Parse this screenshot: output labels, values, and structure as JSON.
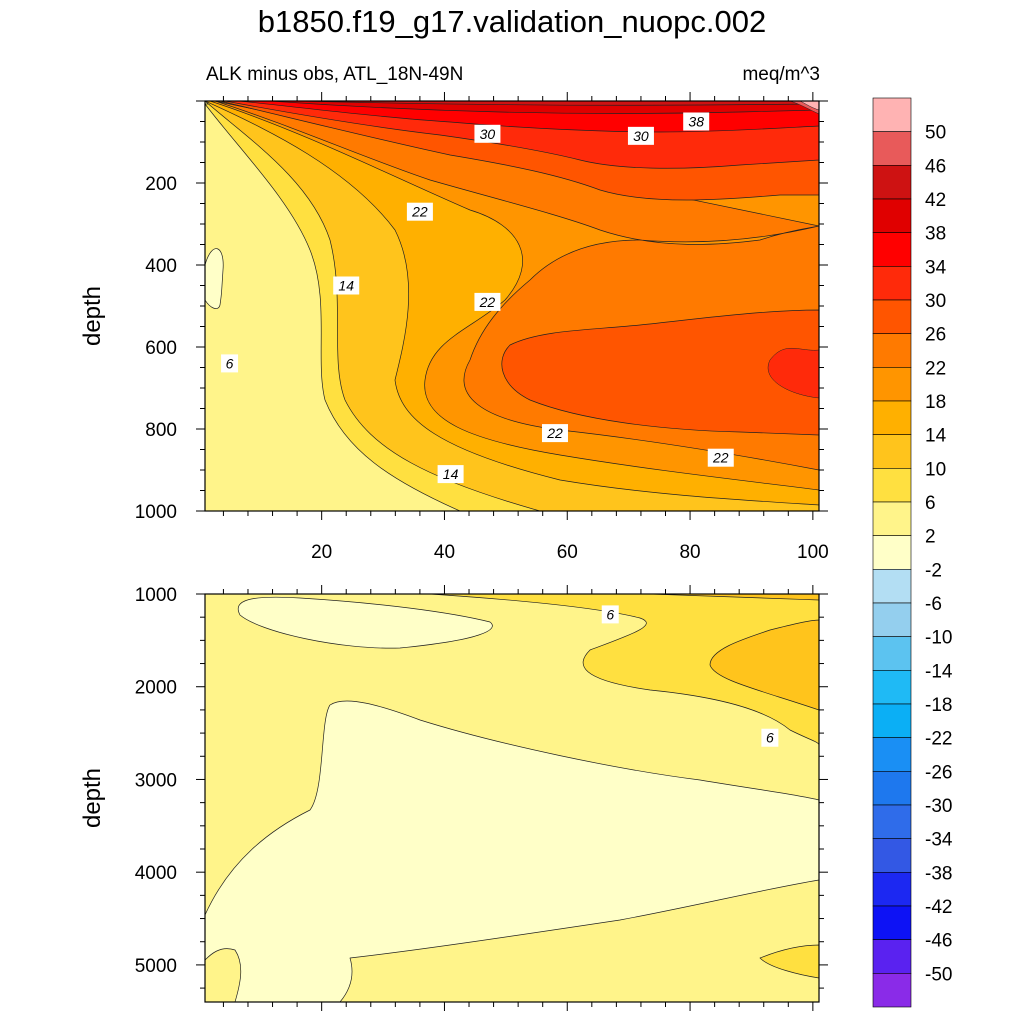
{
  "title": "b1850.f19_g17.validation_nuopc.002",
  "subtitle_left": "ALK minus obs, ATL_18N-49N",
  "subtitle_right": "meq/m^3",
  "chart_data": [
    {
      "type": "contour",
      "panel": "upper",
      "x_ticks": [
        "20",
        "40",
        "60",
        "80",
        "100"
      ],
      "xlim": [
        1,
        101
      ],
      "ylabel": "depth",
      "y_ticks": [
        "200",
        "400",
        "600",
        "800",
        "1000"
      ],
      "ylim": [
        0,
        1000
      ],
      "y_inverted": true,
      "contour_labels": [
        {
          "text": "30",
          "x": 47,
          "y": 80
        },
        {
          "text": "30",
          "x": 72,
          "y": 85
        },
        {
          "text": "38",
          "x": 81,
          "y": 50
        },
        {
          "text": "22",
          "x": 36,
          "y": 270
        },
        {
          "text": "14",
          "x": 24,
          "y": 450
        },
        {
          "text": "22",
          "x": 47,
          "y": 490
        },
        {
          "text": "6",
          "x": 5,
          "y": 640
        },
        {
          "text": "22",
          "x": 58,
          "y": 810
        },
        {
          "text": "22",
          "x": 85,
          "y": 870
        },
        {
          "text": "14",
          "x": 41,
          "y": 910
        }
      ]
    },
    {
      "type": "contour",
      "panel": "lower",
      "x_ticks": [],
      "xlim": [
        1,
        101
      ],
      "ylabel": "depth",
      "y_ticks": [
        "1000",
        "2000",
        "3000",
        "4000",
        "5000"
      ],
      "ylim": [
        1000,
        5400
      ],
      "y_inverted": true,
      "contour_labels": [
        {
          "text": "6",
          "x": 67,
          "y": 1220
        },
        {
          "text": "6",
          "x": 93,
          "y": 2550
        }
      ]
    }
  ],
  "colorbar": {
    "labels": [
      "50",
      "46",
      "42",
      "38",
      "34",
      "30",
      "26",
      "22",
      "18",
      "14",
      "10",
      "6",
      "2",
      "-2",
      "-6",
      "-10",
      "-14",
      "-18",
      "-22",
      "-26",
      "-30",
      "-34",
      "-38",
      "-42",
      "-46",
      "-50"
    ],
    "colors": [
      "#FFB3B3",
      "#E85A5A",
      "#CE1212",
      "#E00000",
      "#FF0000",
      "#FF2A0A",
      "#FF5500",
      "#FF7A00",
      "#FF9500",
      "#FFB000",
      "#FFC41C",
      "#FFE040",
      "#FFF48A",
      "#FFFFC8",
      "#B3DEF3",
      "#94CFEE",
      "#5CC3F0",
      "#1FBAF5",
      "#0BAFF5",
      "#1A8FF4",
      "#1E78EE",
      "#2F6CEA",
      "#3358E4",
      "#1C28F2",
      "#0D12F5",
      "#5A22F0",
      "#8A2BE8"
    ]
  }
}
